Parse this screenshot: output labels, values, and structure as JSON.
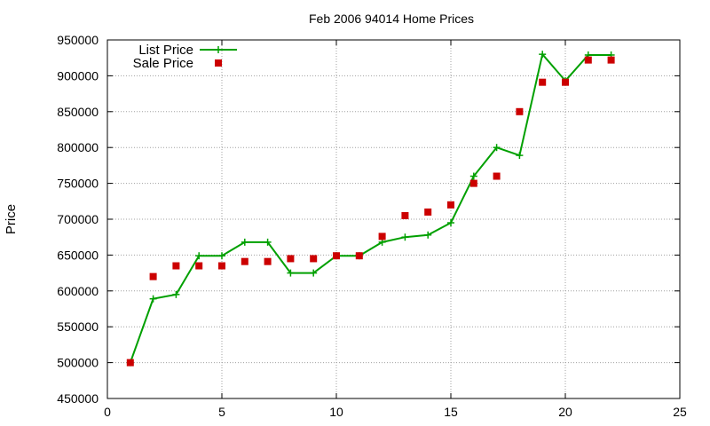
{
  "chart_data": {
    "type": "line",
    "title": "Feb 2006 94014 Home Prices",
    "xlabel": "",
    "ylabel": "Price",
    "xlim": [
      0,
      25
    ],
    "ylim": [
      450000,
      950000
    ],
    "xticks": [
      0,
      5,
      10,
      15,
      20,
      25
    ],
    "yticks": [
      450000,
      500000,
      550000,
      600000,
      650000,
      700000,
      750000,
      800000,
      850000,
      900000,
      950000
    ],
    "grid": true,
    "legend_position": "top-left",
    "series": [
      {
        "name": "List Price",
        "style": "line+cross",
        "color": "#00a000",
        "x": [
          1,
          2,
          3,
          4,
          5,
          6,
          7,
          8,
          9,
          10,
          11,
          12,
          13,
          14,
          15,
          16,
          17,
          18,
          19,
          20,
          21,
          22
        ],
        "y": [
          500000,
          589000,
          595000,
          649000,
          649000,
          668000,
          668000,
          625000,
          625000,
          649000,
          649000,
          668000,
          675000,
          678000,
          695000,
          760000,
          800000,
          789000,
          930000,
          893000,
          929000,
          929000
        ]
      },
      {
        "name": "Sale Price",
        "style": "square",
        "color": "#cc0000",
        "x": [
          1,
          2,
          3,
          4,
          5,
          6,
          7,
          8,
          9,
          10,
          11,
          12,
          13,
          14,
          15,
          16,
          17,
          18,
          19,
          20,
          21,
          22
        ],
        "y": [
          500000,
          620000,
          635000,
          635000,
          635000,
          641000,
          641000,
          645000,
          645000,
          649000,
          649000,
          676000,
          705000,
          710000,
          720000,
          750000,
          760000,
          850000,
          891000,
          891000,
          922000,
          922000
        ]
      }
    ]
  }
}
